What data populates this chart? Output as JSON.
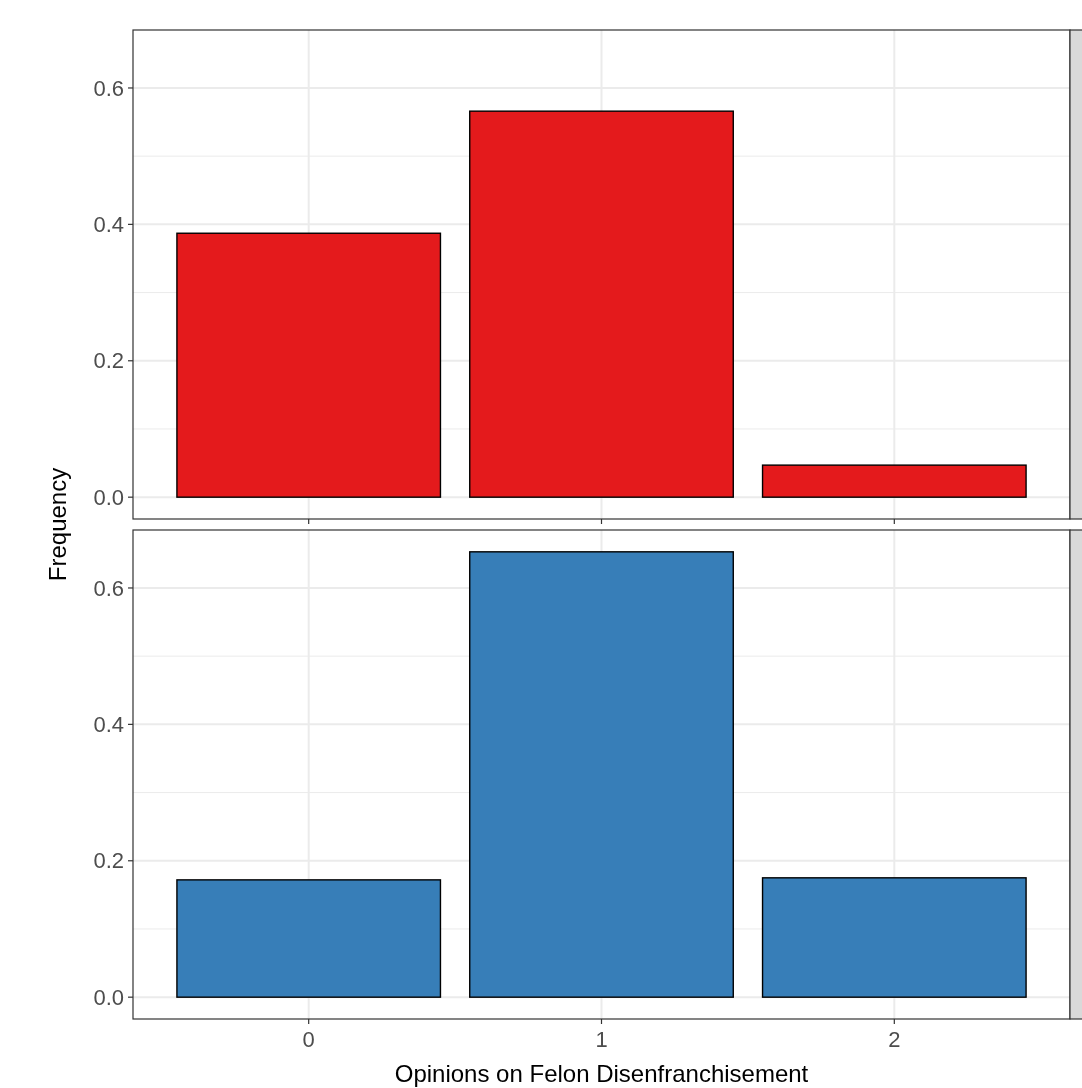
{
  "chart_data": [
    {
      "type": "bar",
      "categories": [
        "0",
        "1",
        "2"
      ],
      "values": [
        0.387,
        0.566,
        0.047
      ],
      "color": "#e41a1c",
      "ylim": [
        -0.032,
        0.685
      ],
      "yticks": [
        {
          "value": 0,
          "label": "0.0"
        },
        0.2,
        0.4,
        0.6
      ],
      "grid": true,
      "tick_labels": "y",
      "ylabel": "Frequency"
    },
    {
      "type": "bar",
      "categories": [
        "0",
        "1",
        "2"
      ],
      "values": [
        0.172,
        0.653,
        0.175
      ],
      "color": "#377eb8",
      "ylim": [
        -0.032,
        0.685
      ],
      "yticks": [
        {
          "value": 0,
          "label": "0.0"
        },
        0.2,
        0.4,
        0.6
      ],
      "grid": true,
      "xlabel": "Opinions on Felon Disenfranchisement"
    }
  ]
}
